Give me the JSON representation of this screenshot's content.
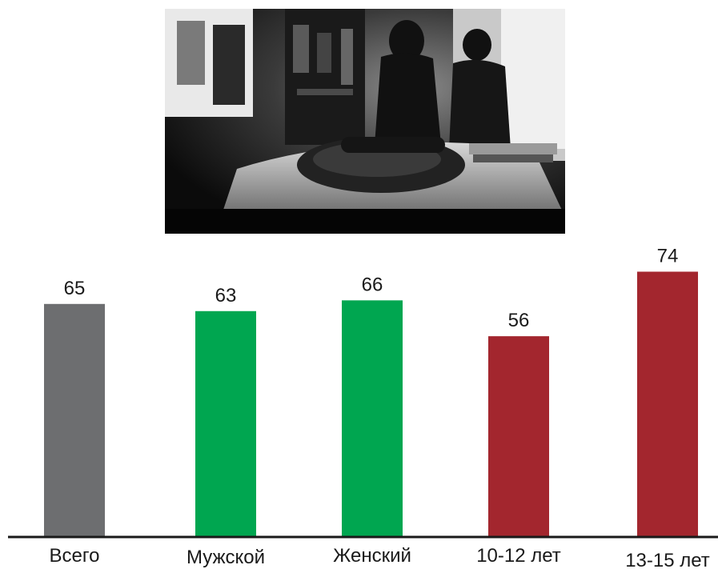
{
  "chart_data": {
    "type": "bar",
    "categories": [
      "Всего",
      "Мужской",
      "Женский",
      "10-12 лет",
      "13-15 лет"
    ],
    "values": [
      65,
      63,
      66,
      56,
      74
    ],
    "bar_colors": [
      "#6d6e70",
      "#00a650",
      "#00a650",
      "#a3262e",
      "#a3262e"
    ],
    "ylim": [
      0,
      100
    ],
    "grid": false,
    "legend": "none"
  },
  "photo": {
    "icon": "black-and-white-photo-telephone-silhouettes"
  }
}
